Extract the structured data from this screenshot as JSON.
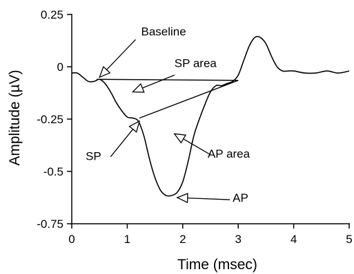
{
  "chart_data": {
    "type": "line",
    "title": "",
    "xlabel": "Time (msec)",
    "ylabel": "Amplitude (µV)",
    "xlim": [
      0,
      5
    ],
    "ylim": [
      -0.75,
      0.25
    ],
    "x_ticks": [
      0,
      1,
      2,
      3,
      4,
      5
    ],
    "x_tick_labels": [
      "0",
      "1",
      "2",
      "3",
      "4",
      "5"
    ],
    "y_ticks": [
      0.25,
      0,
      -0.25,
      -0.5,
      -0.75
    ],
    "y_tick_labels": [
      "0.25",
      "0",
      "-0.25",
      "-0.5",
      "-0.75"
    ],
    "grid": false,
    "line_color": "#000000",
    "series": [
      {
        "x": [
          0.0,
          0.1,
          0.2,
          0.3,
          0.4,
          0.5,
          0.6,
          0.7,
          0.8,
          0.9,
          1.0,
          1.1,
          1.2,
          1.3,
          1.4,
          1.5,
          1.6,
          1.7,
          1.8,
          1.9,
          2.0,
          2.1,
          2.2,
          2.3,
          2.4,
          2.5,
          2.6,
          2.7,
          2.8,
          2.9,
          3.0,
          3.1,
          3.2,
          3.3,
          3.4,
          3.5,
          3.6,
          3.7,
          3.8,
          3.9,
          4.0,
          4.2,
          4.4,
          4.6,
          4.8,
          5.0
        ],
        "y": [
          -0.03,
          -0.03,
          -0.05,
          -0.07,
          -0.07,
          -0.06,
          -0.08,
          -0.12,
          -0.17,
          -0.21,
          -0.24,
          -0.245,
          -0.26,
          -0.33,
          -0.44,
          -0.53,
          -0.59,
          -0.615,
          -0.615,
          -0.6,
          -0.55,
          -0.45,
          -0.33,
          -0.25,
          -0.18,
          -0.12,
          -0.09,
          -0.09,
          -0.08,
          -0.07,
          -0.04,
          0.03,
          0.1,
          0.14,
          0.14,
          0.11,
          0.05,
          0.0,
          -0.02,
          -0.02,
          -0.02,
          -0.03,
          -0.03,
          -0.02,
          -0.03,
          -0.02
        ]
      }
    ],
    "straight_lines": [
      {
        "name": "baseline-line",
        "from": [
          0.45,
          -0.06
        ],
        "to": [
          3.0,
          -0.065
        ]
      },
      {
        "name": "sp-ap-divider-line",
        "from": [
          1.22,
          -0.245
        ],
        "to": [
          3.0,
          -0.065
        ]
      }
    ],
    "annotations": [
      {
        "text": "Baseline",
        "text_x": 1.25,
        "text_y": 0.15,
        "arrow_from": [
          1.15,
          0.13
        ],
        "arrow_to": [
          0.5,
          -0.05
        ]
      },
      {
        "text": "SP area",
        "text_x": 1.85,
        "text_y": -0.001,
        "arrow_from": [
          1.85,
          -0.04
        ],
        "arrow_to": [
          1.1,
          -0.12
        ]
      },
      {
        "text": "SP",
        "text_x": 0.25,
        "text_y": -0.445,
        "arrow_from": [
          0.7,
          -0.43
        ],
        "arrow_to": [
          1.22,
          -0.26
        ]
      },
      {
        "text": "AP area",
        "text_x": 2.45,
        "text_y": -0.435,
        "arrow_from": [
          2.5,
          -0.42
        ],
        "arrow_to": [
          1.85,
          -0.32
        ]
      },
      {
        "text": "AP",
        "text_x": 2.9,
        "text_y": -0.645,
        "arrow_from": [
          2.85,
          -0.635
        ],
        "arrow_to": [
          1.9,
          -0.625
        ]
      }
    ]
  }
}
